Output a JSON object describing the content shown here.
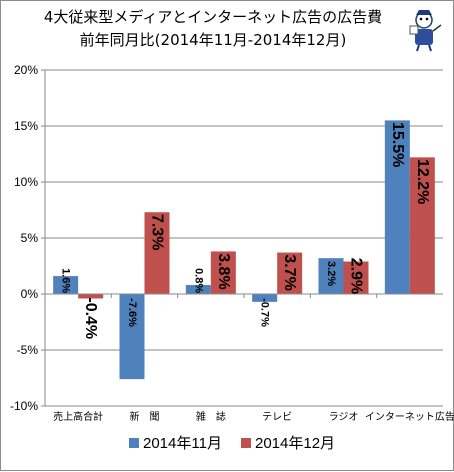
{
  "chart_data": {
    "type": "bar",
    "title_lines": [
      "4大従来型メディアとインターネット広告の広告費",
      "前年同月比(2014年11月-2014年12月)"
    ],
    "categories": [
      "売上高合計",
      "新　聞",
      "雑　誌",
      "テレビ",
      "ラジオ",
      "インターネット広告"
    ],
    "series": [
      {
        "name": "2014年11月",
        "color": "#4f81bd",
        "values": [
          1.6,
          -7.6,
          0.8,
          -0.7,
          3.2,
          15.5
        ],
        "labels": [
          "1.6%",
          "-7.6%",
          "0.8%",
          "-0.7%",
          "3.2%",
          "15.5%"
        ]
      },
      {
        "name": "2014年12月",
        "color": "#c0504d",
        "values": [
          -0.4,
          7.3,
          3.8,
          3.7,
          2.9,
          12.2
        ],
        "labels": [
          "-0.4%",
          "7.3%",
          "3.8%",
          "3.7%",
          "2.9%",
          "12.2%"
        ]
      }
    ],
    "yticks": [
      "20%",
      "15%",
      "10%",
      "5%",
      "0%",
      "-5%",
      "-10%"
    ],
    "ylim": [
      -10,
      20
    ],
    "ytick_step": 5,
    "grid": true,
    "legend_position": "bottom"
  },
  "logo_icon": "character-mascot-icon"
}
